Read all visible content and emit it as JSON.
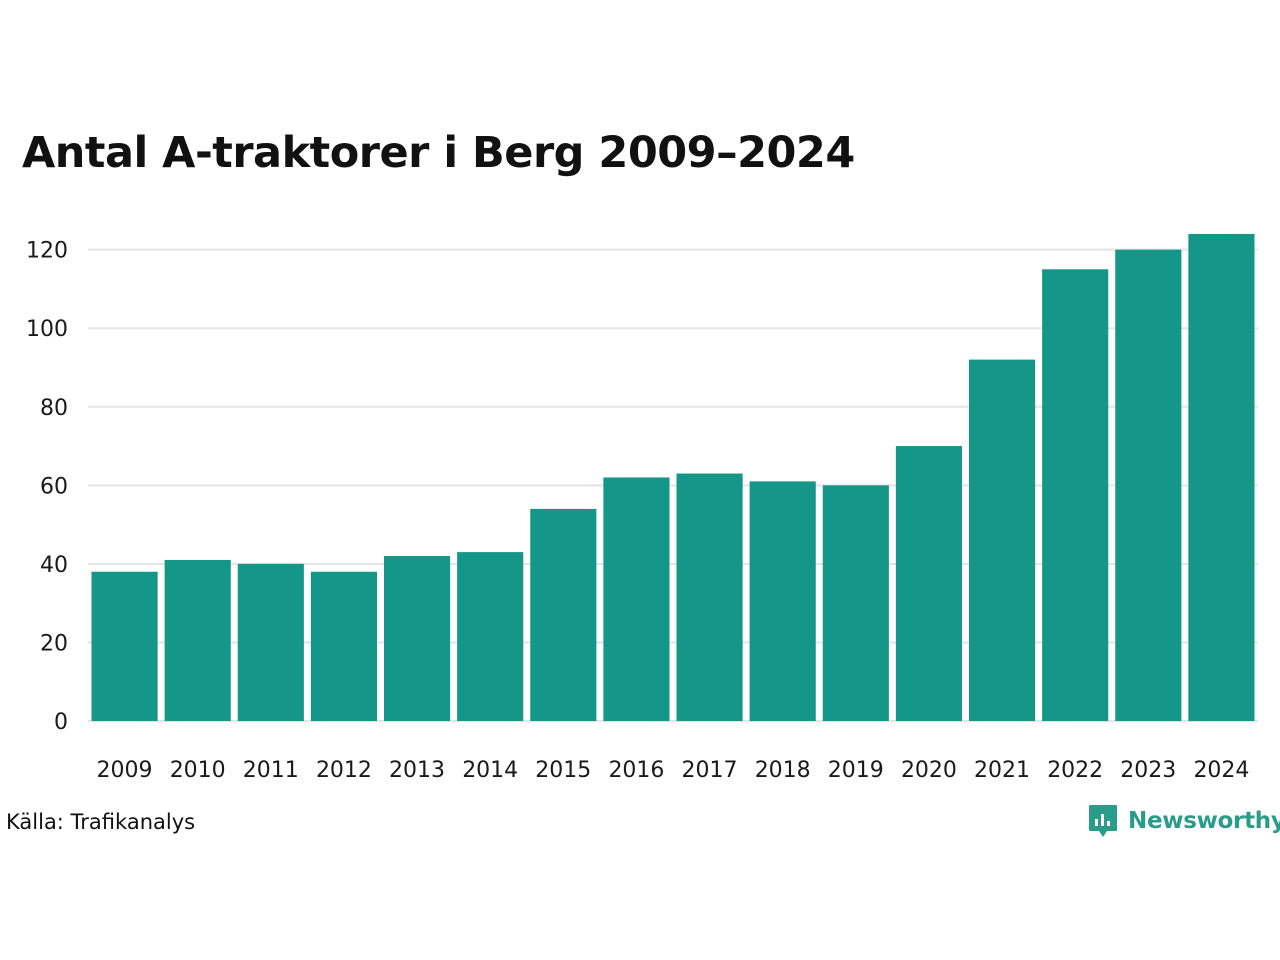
{
  "chart_data": {
    "type": "bar",
    "title": "Antal A-traktorer i Berg 2009–2024",
    "categories": [
      "2009",
      "2010",
      "2011",
      "2012",
      "2013",
      "2014",
      "2015",
      "2016",
      "2017",
      "2018",
      "2019",
      "2020",
      "2021",
      "2022",
      "2023",
      "2024"
    ],
    "values": [
      38,
      41,
      40,
      38,
      42,
      43,
      54,
      62,
      63,
      61,
      60,
      70,
      92,
      115,
      120,
      124
    ],
    "ylim": [
      0,
      125
    ],
    "yticks": [
      0,
      20,
      40,
      60,
      80,
      100,
      120
    ],
    "xlabel": "",
    "ylabel": "",
    "grid": true,
    "bar_color": "#149688",
    "grid_color": "#e3e3e8"
  },
  "source": "Källa: Trafikanalys",
  "brand": {
    "name": "Newsworthy",
    "icon": "newsworthy-logo-icon",
    "color": "#2a9d8a"
  }
}
